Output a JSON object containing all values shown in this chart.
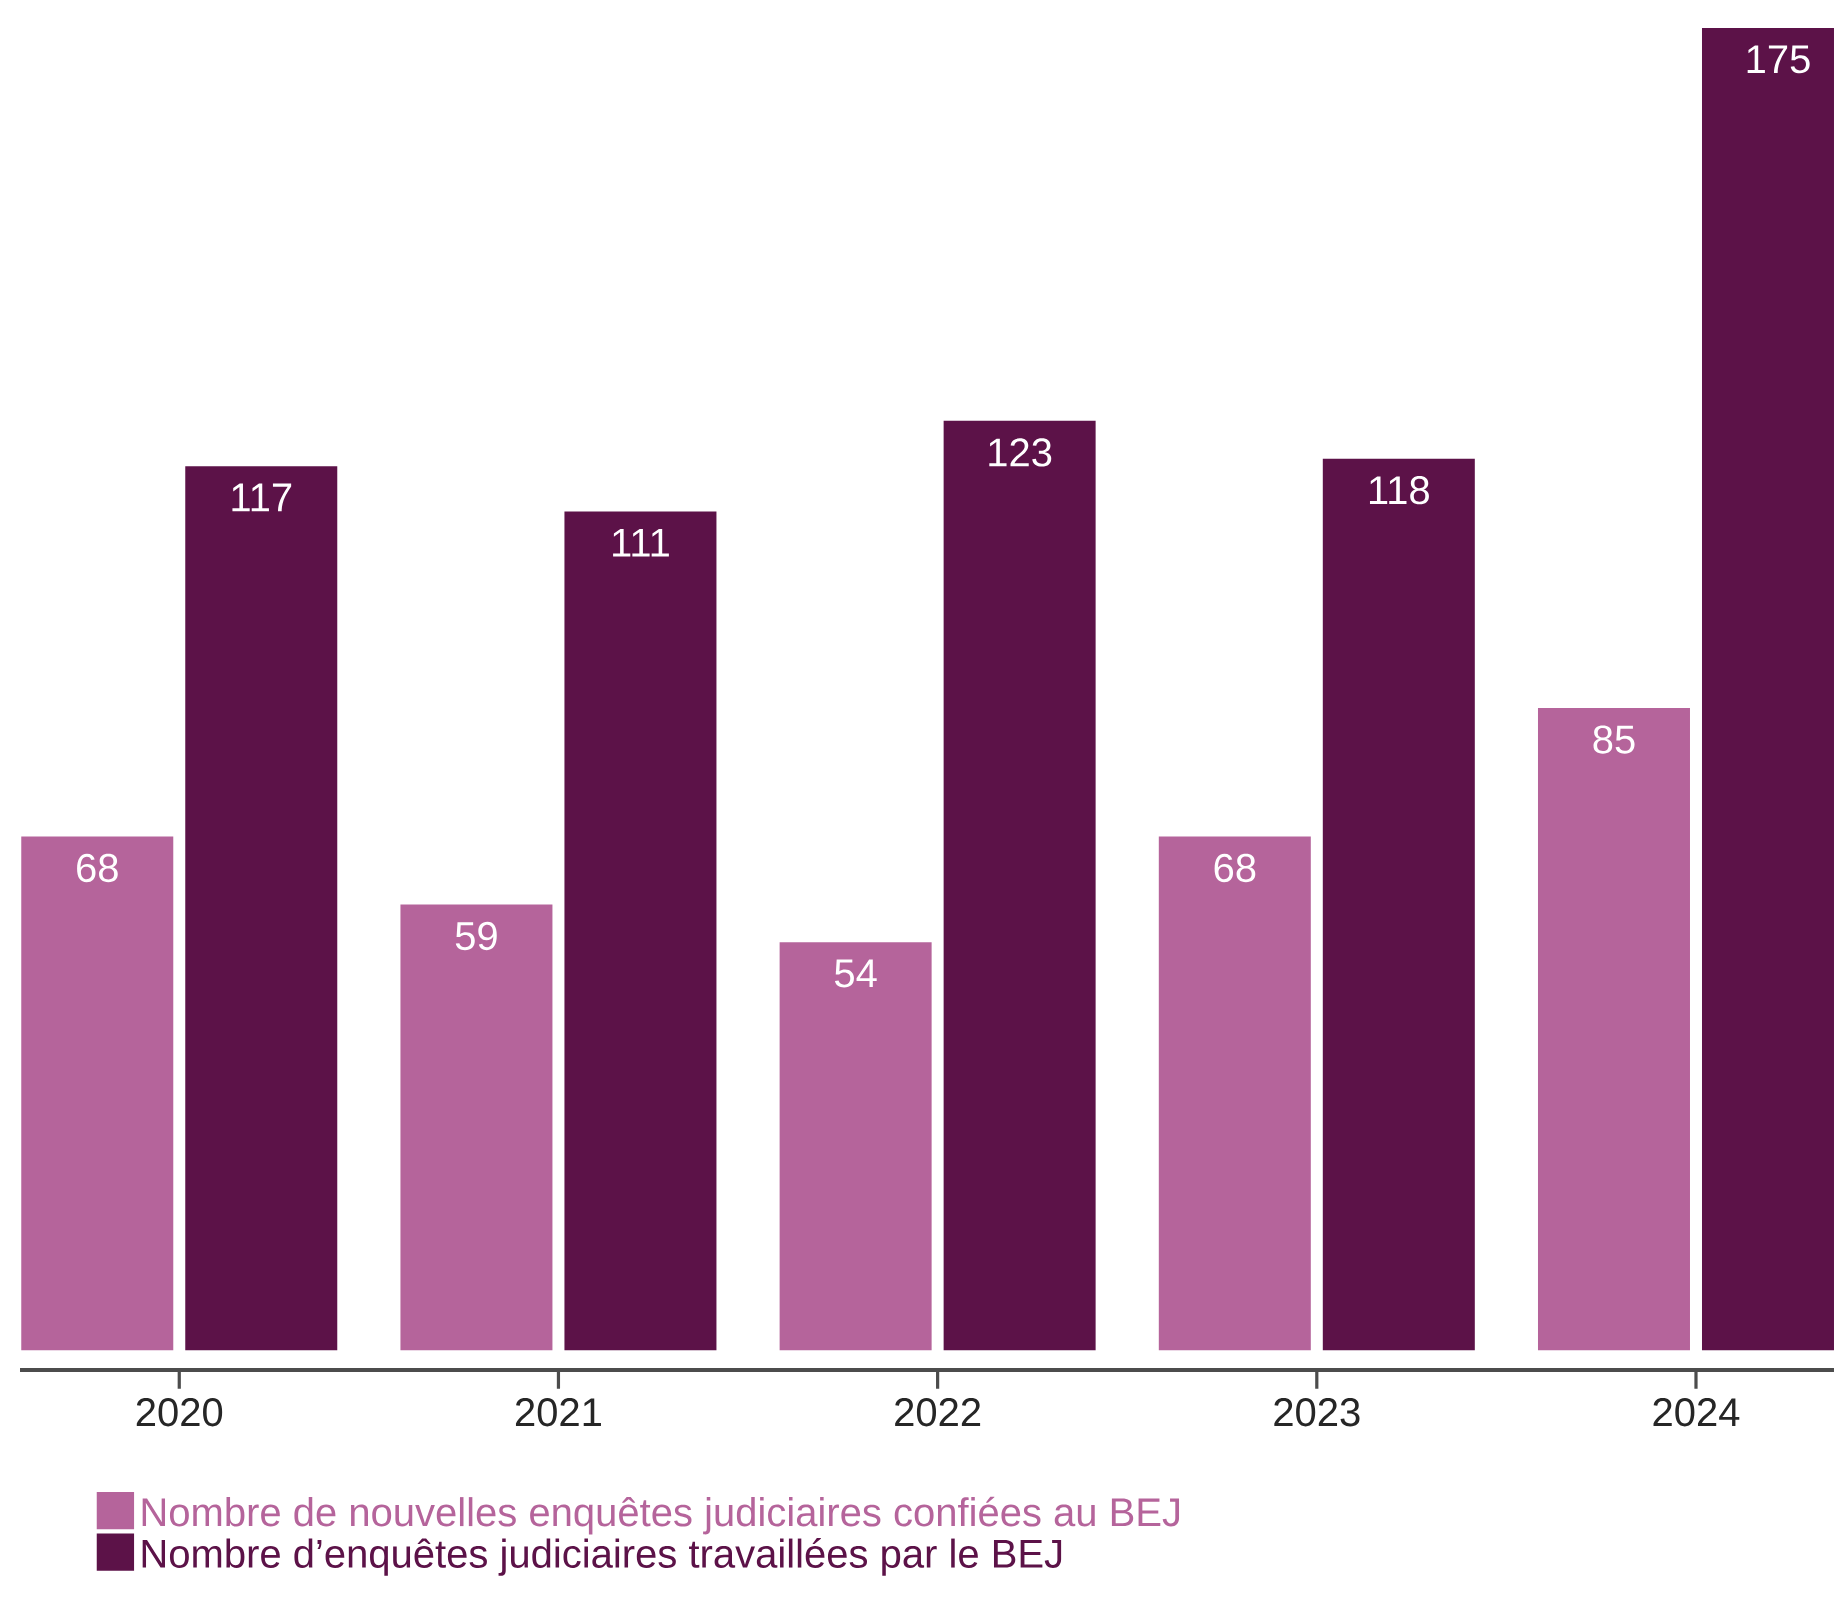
{
  "chart_data": {
    "type": "bar",
    "categories": [
      "2020",
      "2021",
      "2022",
      "2023",
      "2024"
    ],
    "series": [
      {
        "name": "Nombre de nouvelles enquêtes judiciaires confiées au BEJ",
        "color": "#b5649b",
        "values": [
          68,
          59,
          54,
          68,
          85
        ]
      },
      {
        "name": "Nombre d’enquêtes judiciaires travaillées par le BEJ",
        "color": "#5c1248",
        "values": [
          117,
          111,
          123,
          118,
          175
        ]
      }
    ],
    "data_labels": true,
    "legend": "bottom left"
  }
}
